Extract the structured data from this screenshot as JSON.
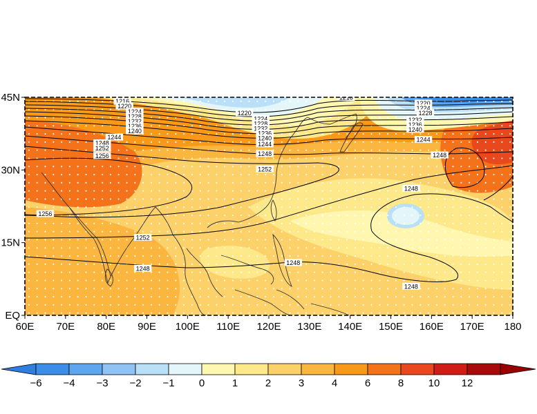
{
  "chart_data": {
    "type": "heatmap",
    "title": "",
    "x_axis": {
      "ticks": [
        60,
        70,
        80,
        90,
        100,
        110,
        120,
        130,
        140,
        150,
        160,
        170,
        180
      ],
      "labels": [
        "60E",
        "70E",
        "80E",
        "90E",
        "100E",
        "110E",
        "120E",
        "130E",
        "140E",
        "150E",
        "160E",
        "170E",
        "180"
      ],
      "range": [
        60,
        180
      ]
    },
    "y_axis": {
      "ticks": [
        0,
        15,
        30,
        45
      ],
      "labels": [
        "EQ",
        "15N",
        "30N",
        "45N"
      ],
      "range": [
        0,
        45
      ]
    },
    "colorbar": {
      "levels": [
        "−6",
        "−4",
        "−3",
        "−2",
        "−1",
        "0",
        "1",
        "2",
        "3",
        "4",
        "6",
        "8",
        "10",
        "12"
      ],
      "colors": [
        "#3b8ee8",
        "#5ea6f0",
        "#8fc3f5",
        "#b9e0f7",
        "#e4f6fa",
        "#fff7b0",
        "#fde88a",
        "#fdd16a",
        "#fbb640",
        "#f9991a",
        "#f4721a",
        "#e8481c",
        "#cf1c14",
        "#a80a0a"
      ],
      "under_color": "#2f7fe0",
      "over_color": "#9a0000"
    },
    "contour_labels": [
      {
        "value": "1216",
        "lon": 84,
        "lat": 44.2
      },
      {
        "value": "1220",
        "lon": 84.5,
        "lat": 43.2
      },
      {
        "value": "1224",
        "lon": 87,
        "lat": 42.1
      },
      {
        "value": "1228",
        "lon": 87,
        "lat": 41.1
      },
      {
        "value": "1232",
        "lon": 87,
        "lat": 40.1
      },
      {
        "value": "1236",
        "lon": 87,
        "lat": 39.1
      },
      {
        "value": "1240",
        "lon": 87,
        "lat": 38.1
      },
      {
        "value": "1244",
        "lon": 82,
        "lat": 36.8
      },
      {
        "value": "1248",
        "lon": 79,
        "lat": 35.6
      },
      {
        "value": "1252",
        "lon": 79,
        "lat": 34.5
      },
      {
        "value": "1256",
        "lon": 79,
        "lat": 33.0
      },
      {
        "value": "1256",
        "lon": 65,
        "lat": 21.0
      },
      {
        "value": "1252",
        "lon": 89,
        "lat": 16.1
      },
      {
        "value": "1248",
        "lon": 89,
        "lat": 9.7
      },
      {
        "value": "1216",
        "lon": 139,
        "lat": 45.0
      },
      {
        "value": "1220",
        "lon": 114,
        "lat": 41.8
      },
      {
        "value": "1224",
        "lon": 118,
        "lat": 40.6
      },
      {
        "value": "1228",
        "lon": 118,
        "lat": 39.6
      },
      {
        "value": "1232",
        "lon": 118,
        "lat": 38.6
      },
      {
        "value": "1236",
        "lon": 119,
        "lat": 37.6
      },
      {
        "value": "1240",
        "lon": 119,
        "lat": 36.6
      },
      {
        "value": "1244",
        "lon": 119,
        "lat": 35.4
      },
      {
        "value": "1248",
        "lon": 119,
        "lat": 33.4
      },
      {
        "value": "1252",
        "lon": 119,
        "lat": 30.2
      },
      {
        "value": "1248",
        "lon": 126,
        "lat": 10.9
      },
      {
        "value": "1220",
        "lon": 158,
        "lat": 43.8
      },
      {
        "value": "1224",
        "lon": 158,
        "lat": 42.8
      },
      {
        "value": "1228",
        "lon": 158.5,
        "lat": 41.8
      },
      {
        "value": "1232",
        "lon": 156,
        "lat": 40.4
      },
      {
        "value": "1236",
        "lon": 156,
        "lat": 39.4
      },
      {
        "value": "1240",
        "lon": 156,
        "lat": 38.4
      },
      {
        "value": "1244",
        "lon": 158,
        "lat": 36.3
      },
      {
        "value": "1248",
        "lon": 162,
        "lat": 33.1
      },
      {
        "value": "1248",
        "lon": 155,
        "lat": 26.2
      },
      {
        "value": "1248",
        "lon": 155,
        "lat": 6.0
      }
    ],
    "grid": false,
    "legend": "bottom"
  }
}
